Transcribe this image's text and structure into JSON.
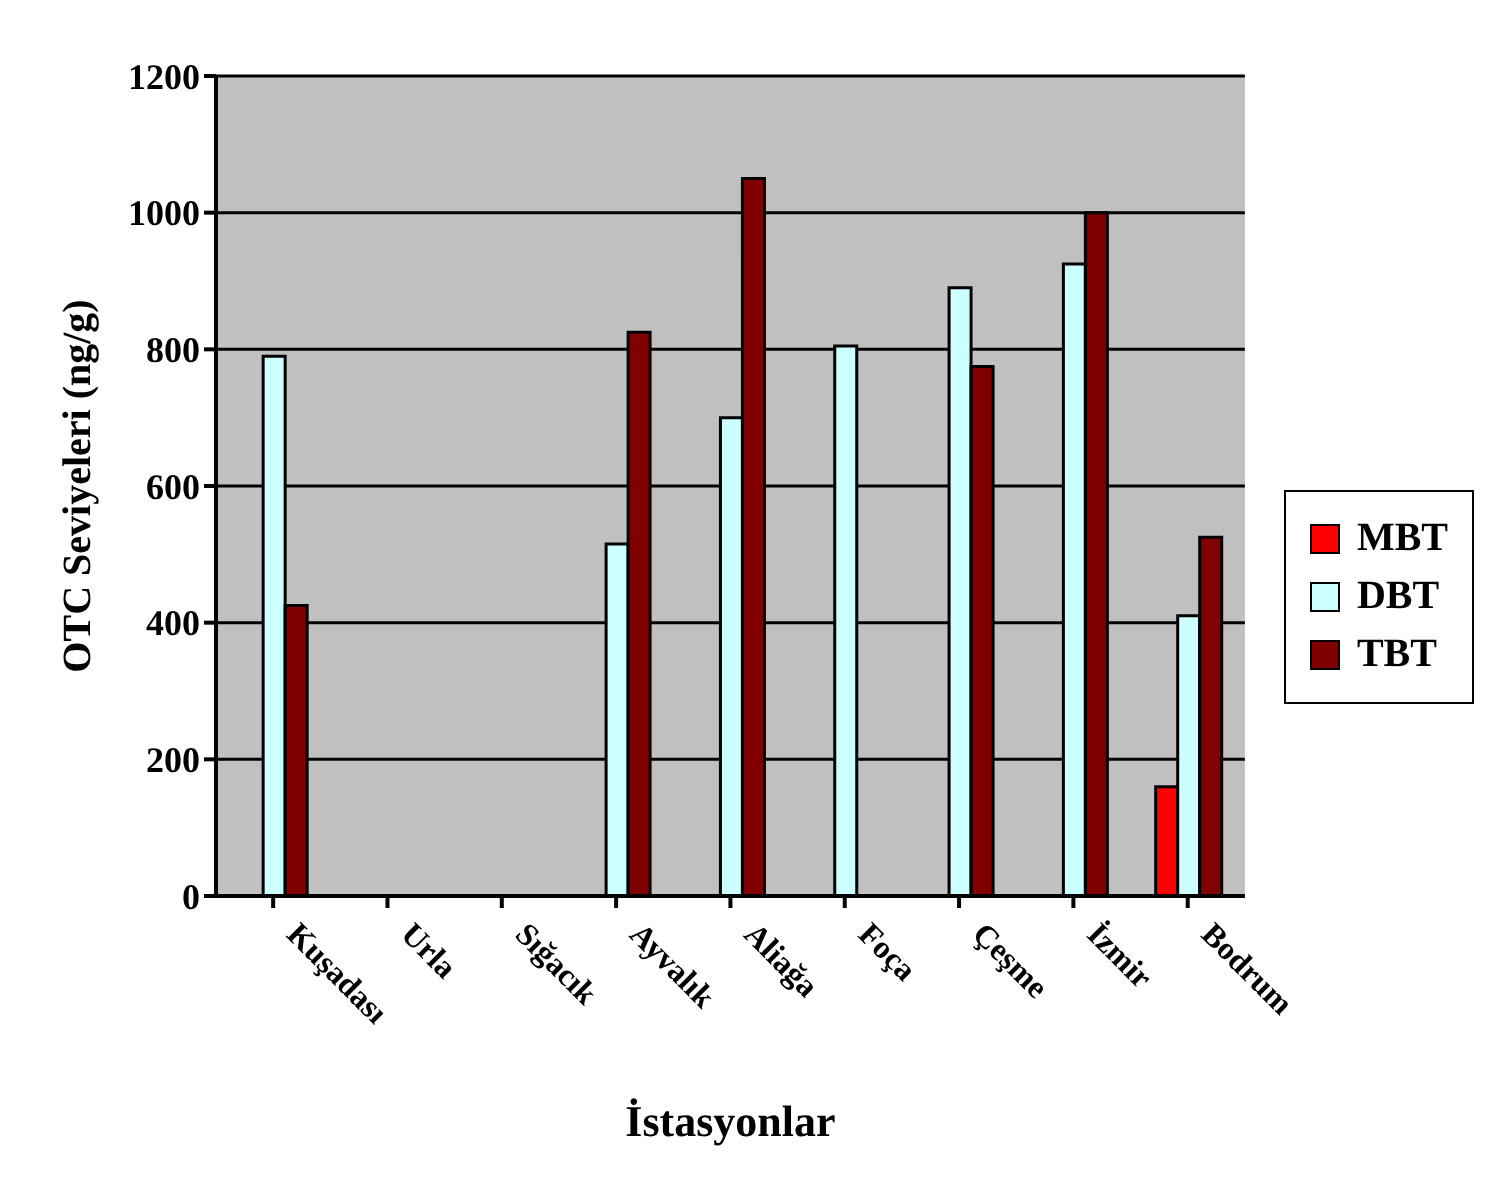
{
  "chart_data": {
    "type": "bar",
    "xlabel": "İstasyonlar",
    "ylabel": "OTC Seviyeleri (ng/g)",
    "categories": [
      "Kuşadası",
      "Urla",
      "Sığacık",
      "Ayvalık",
      "Aliağa",
      "Foça",
      "Çeşme",
      "İzmir",
      "Bodrum"
    ],
    "series": [
      {
        "name": "MBT",
        "color": "#ff0000",
        "values": [
          null,
          null,
          null,
          null,
          null,
          null,
          null,
          null,
          160
        ]
      },
      {
        "name": "DBT",
        "color": "#ccffff",
        "values": [
          790,
          null,
          null,
          515,
          700,
          805,
          890,
          925,
          410
        ]
      },
      {
        "name": "TBT",
        "color": "#800000",
        "values": [
          425,
          null,
          null,
          825,
          1050,
          null,
          775,
          1000,
          525
        ]
      }
    ],
    "ylim": [
      0,
      1200
    ],
    "yticks": [
      0,
      200,
      400,
      600,
      800,
      1000,
      1200
    ],
    "grid": "y",
    "legend": "right"
  }
}
